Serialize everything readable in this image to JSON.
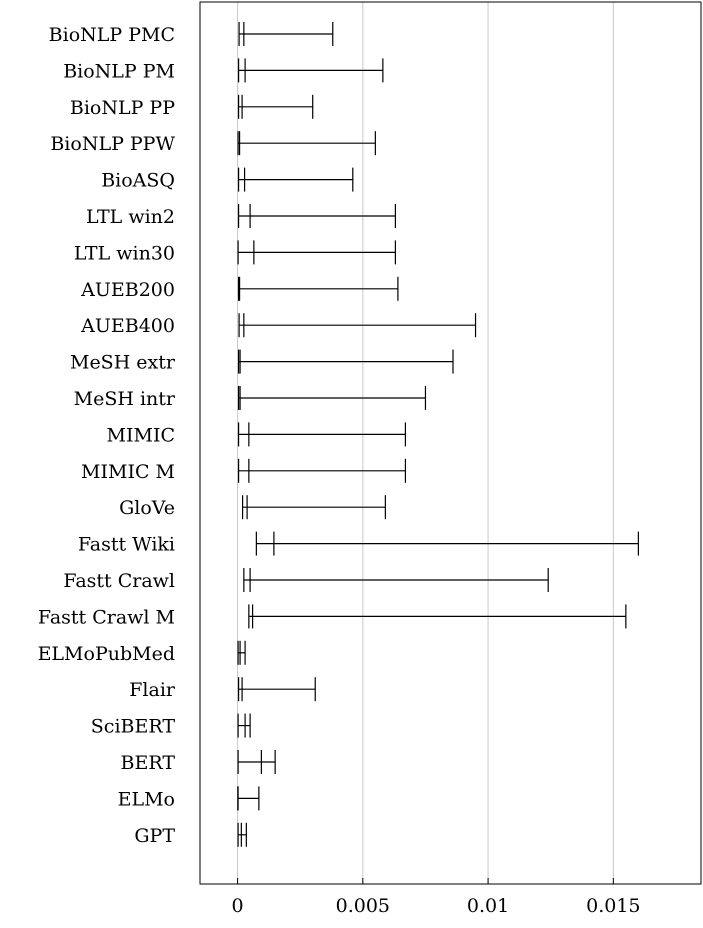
{
  "chart_data": {
    "type": "errorbar",
    "title": "",
    "xlabel": "",
    "ylabel": "",
    "xlim": [
      -0.0015,
      0.0185
    ],
    "xticks": [
      0,
      0.005,
      0.01,
      0.015
    ],
    "xtick_labels": [
      "0",
      "0.005",
      "0.01",
      "0.015"
    ],
    "grid": "vertical",
    "categories": [
      "BioNLP PMC",
      "BioNLP PM",
      "BioNLP PP",
      "BioNLP PPW",
      "BioASQ",
      "LTL win2",
      "LTL win30",
      "AUEB200",
      "AUEB400",
      "MeSH extr",
      "MeSH intr",
      "MIMIC",
      "MIMIC M",
      "GloVe",
      "Fastt Wiki",
      "Fastt Crawl",
      "Fastt Crawl M",
      "ELMoPubMed",
      "Flair",
      "SciBERT",
      "BERT",
      "ELMo",
      "GPT"
    ],
    "min": [
      6e-05,
      4e-05,
      4e-05,
      2e-05,
      4e-05,
      4e-05,
      2e-05,
      4e-05,
      6e-05,
      4e-05,
      4e-05,
      4e-05,
      4e-05,
      0.0002,
      0.00075,
      0.00025,
      0.00045,
      2e-05,
      4e-05,
      2e-05,
      2e-05,
      1e-05,
      2e-05
    ],
    "mid": [
      0.00025,
      0.0003,
      0.00018,
      8e-05,
      0.00028,
      0.0005,
      0.00065,
      8e-05,
      0.00025,
      0.0001,
      0.0001,
      0.00045,
      0.00045,
      0.00038,
      0.00145,
      0.0005,
      0.0006,
      0.0001,
      0.00018,
      0.0003,
      0.00095,
      2e-05,
      0.00015
    ],
    "max": [
      0.0038,
      0.0058,
      0.003,
      0.0055,
      0.0046,
      0.0063,
      0.0063,
      0.0064,
      0.0095,
      0.0086,
      0.0075,
      0.0067,
      0.0067,
      0.0059,
      0.016,
      0.0124,
      0.0155,
      0.0003,
      0.0031,
      0.0005,
      0.0015,
      0.00085,
      0.00035
    ]
  }
}
